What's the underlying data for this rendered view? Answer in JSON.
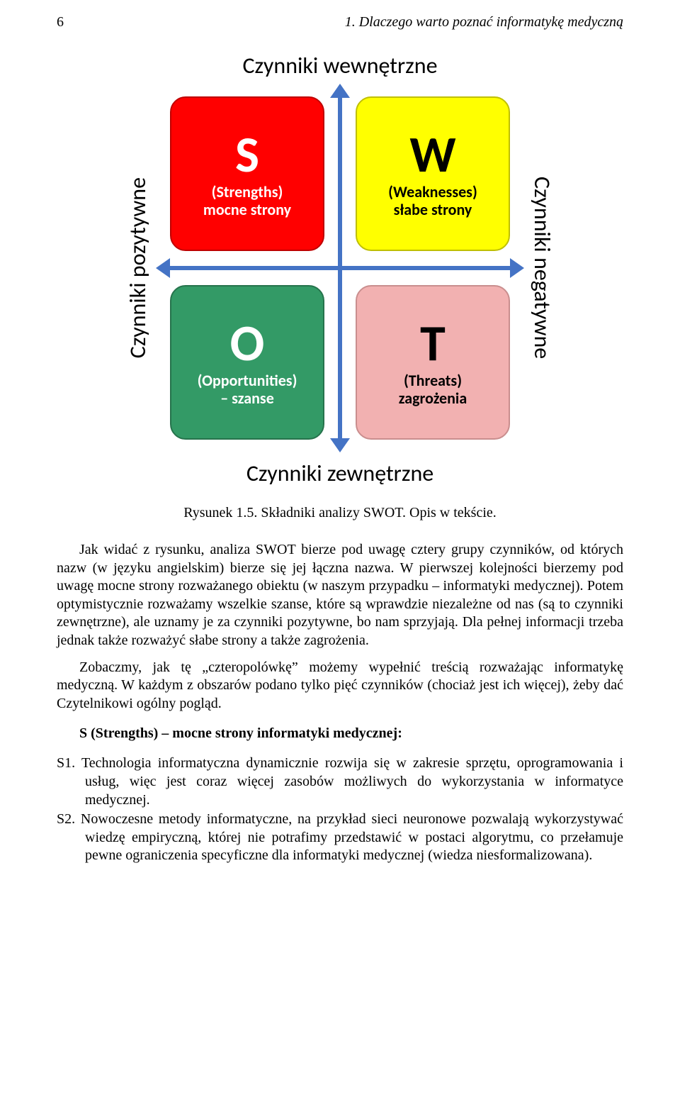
{
  "header": {
    "page_number": "6",
    "running_title": "1. Dlaczego warto poznać informatykę medyczną"
  },
  "swot": {
    "labels": {
      "top": "Czynniki wewnętrzne",
      "bottom": "Czynniki zewnętrzne",
      "left": "Czynniki pozytywne",
      "right": "Czynniki negatywne"
    },
    "arrow_color": "#4473c5",
    "quadrants": {
      "s": {
        "letter": "S",
        "sub1": "(Strengths)",
        "sub2": "mocne strony",
        "fill": "#ff0000",
        "border": "#bf0000",
        "text_color": "#ffffff"
      },
      "w": {
        "letter": "W",
        "sub1": "(Weaknesses)",
        "sub2": "słabe strony",
        "fill": "#ffff00",
        "border": "#bfbf00",
        "text_color": "#000000"
      },
      "o": {
        "letter": "O",
        "sub1": "(Opportunities)",
        "sub2": "– szanse",
        "fill": "#339a66",
        "border": "#26734c",
        "text_color": "#ffffff"
      },
      "t": {
        "letter": "T",
        "sub1": "(Threats)",
        "sub2": "zagrożenia",
        "fill": "#f2b1b1",
        "border": "#c98e8e",
        "text_color": "#000000"
      }
    },
    "label_fontsize": 32,
    "letter_fontsize": 72,
    "sub_fontsize": 22,
    "quad_radius": 22
  },
  "caption": "Rysunek 1.5. Składniki analizy SWOT. Opis w tekście.",
  "paragraphs": {
    "p1": "Jak widać z rysunku, analiza SWOT bierze pod uwagę cztery grupy czynników, od których nazw (w języku angielskim) bierze się jej łączna nazwa. W pierwszej kolejności bierzemy pod uwagę mocne strony rozważanego obiektu (w naszym przypadku – informatyki medycznej). Potem optymistycznie rozważamy wszelkie szanse, które są wprawdzie niezależne od nas (są to czynniki zewnętrzne), ale uznamy je za czynniki pozytywne, bo nam sprzyjają. Dla pełnej informacji trzeba jednak także rozważyć słabe strony a także zagrożenia.",
    "p2": "Zobaczmy, jak tę „czteropolówkę” możemy wypełnić treścią rozważając informatykę medyczną. W każdym z obszarów podano tylko pięć czynników (chociaż jest ich więcej), żeby dać Czytelnikowi ogólny pogląd."
  },
  "section_heading": "S (Strengths) – mocne strony informatyki medycznej:",
  "list": {
    "s1": "S1. Technologia informatyczna dynamicznie rozwija się w zakresie sprzętu, oprogramowania i usług, więc jest coraz więcej zasobów możliwych do wykorzystania w informatyce medycznej.",
    "s2": "S2. Nowoczesne metody informatyczne, na przykład sieci neuronowe pozwalają wykorzystywać wiedzę empiryczną, której nie potrafimy przedstawić w postaci algorytmu, co przełamuje pewne ograniczenia specyficzne dla informatyki medycznej (wiedza niesformalizowana)."
  },
  "typography": {
    "body_fontsize": 20,
    "body_color": "#000000",
    "background": "#ffffff"
  }
}
